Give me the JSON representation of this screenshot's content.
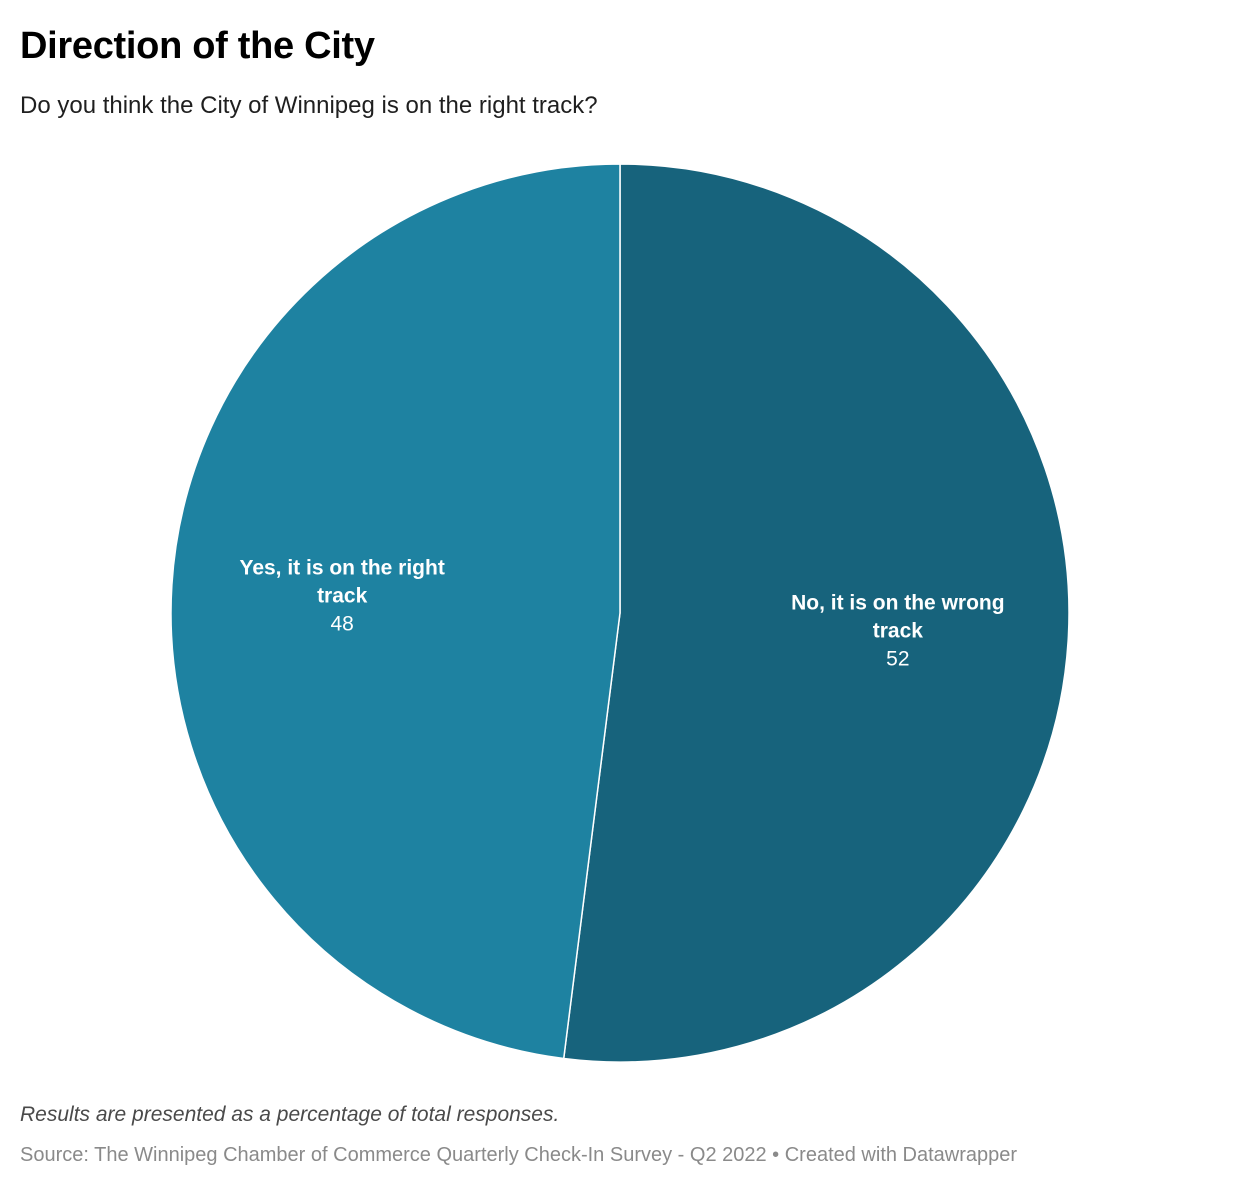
{
  "header": {
    "title": "Direction of the City",
    "subtitle": "Do you think the City of Winnipeg is on the right track?"
  },
  "chart_data": {
    "type": "pie",
    "title": "Direction of the City",
    "subtitle": "Do you think the City of Winnipeg is on the right track?",
    "slices": [
      {
        "label_lines": [
          "No, it is on the wrong",
          "track"
        ],
        "value": 52,
        "color": "#17637c"
      },
      {
        "label_lines": [
          "Yes, it is on the right",
          "track"
        ],
        "value": 48,
        "color": "#1e82a1"
      }
    ],
    "start_angle": "12 o'clock",
    "direction": "clockwise",
    "separator_color": "#ffffff"
  },
  "footer": {
    "note": "Results are presented as a percentage of total responses.",
    "source": "Source: The Winnipeg Chamber of Commerce Quarterly Check-In Survey - Q2 2022 • Created with Datawrapper"
  }
}
